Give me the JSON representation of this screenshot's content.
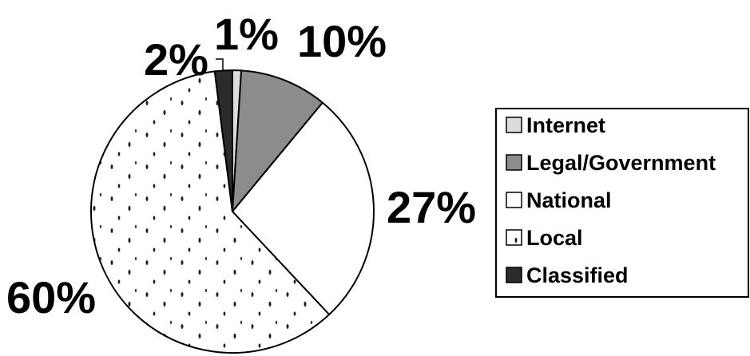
{
  "chart_data": {
    "type": "pie",
    "slices": [
      {
        "name": "Internet",
        "value": 1,
        "label": "1%",
        "color": "#dcdcdc",
        "pattern": "none"
      },
      {
        "name": "Legal/Government",
        "value": 10,
        "label": "10%",
        "color": "#8c8c8c",
        "pattern": "none"
      },
      {
        "name": "National",
        "value": 27,
        "label": "27%",
        "color": "#ffffff",
        "pattern": "none"
      },
      {
        "name": "Local",
        "value": 60,
        "label": "60%",
        "color": "#ffffff",
        "pattern": "dots"
      },
      {
        "name": "Classified",
        "value": 2,
        "label": "2%",
        "color": "#2b2b2b",
        "pattern": "none"
      }
    ],
    "start": "12 o'clock",
    "direction": "clockwise",
    "legend_position": "right"
  }
}
